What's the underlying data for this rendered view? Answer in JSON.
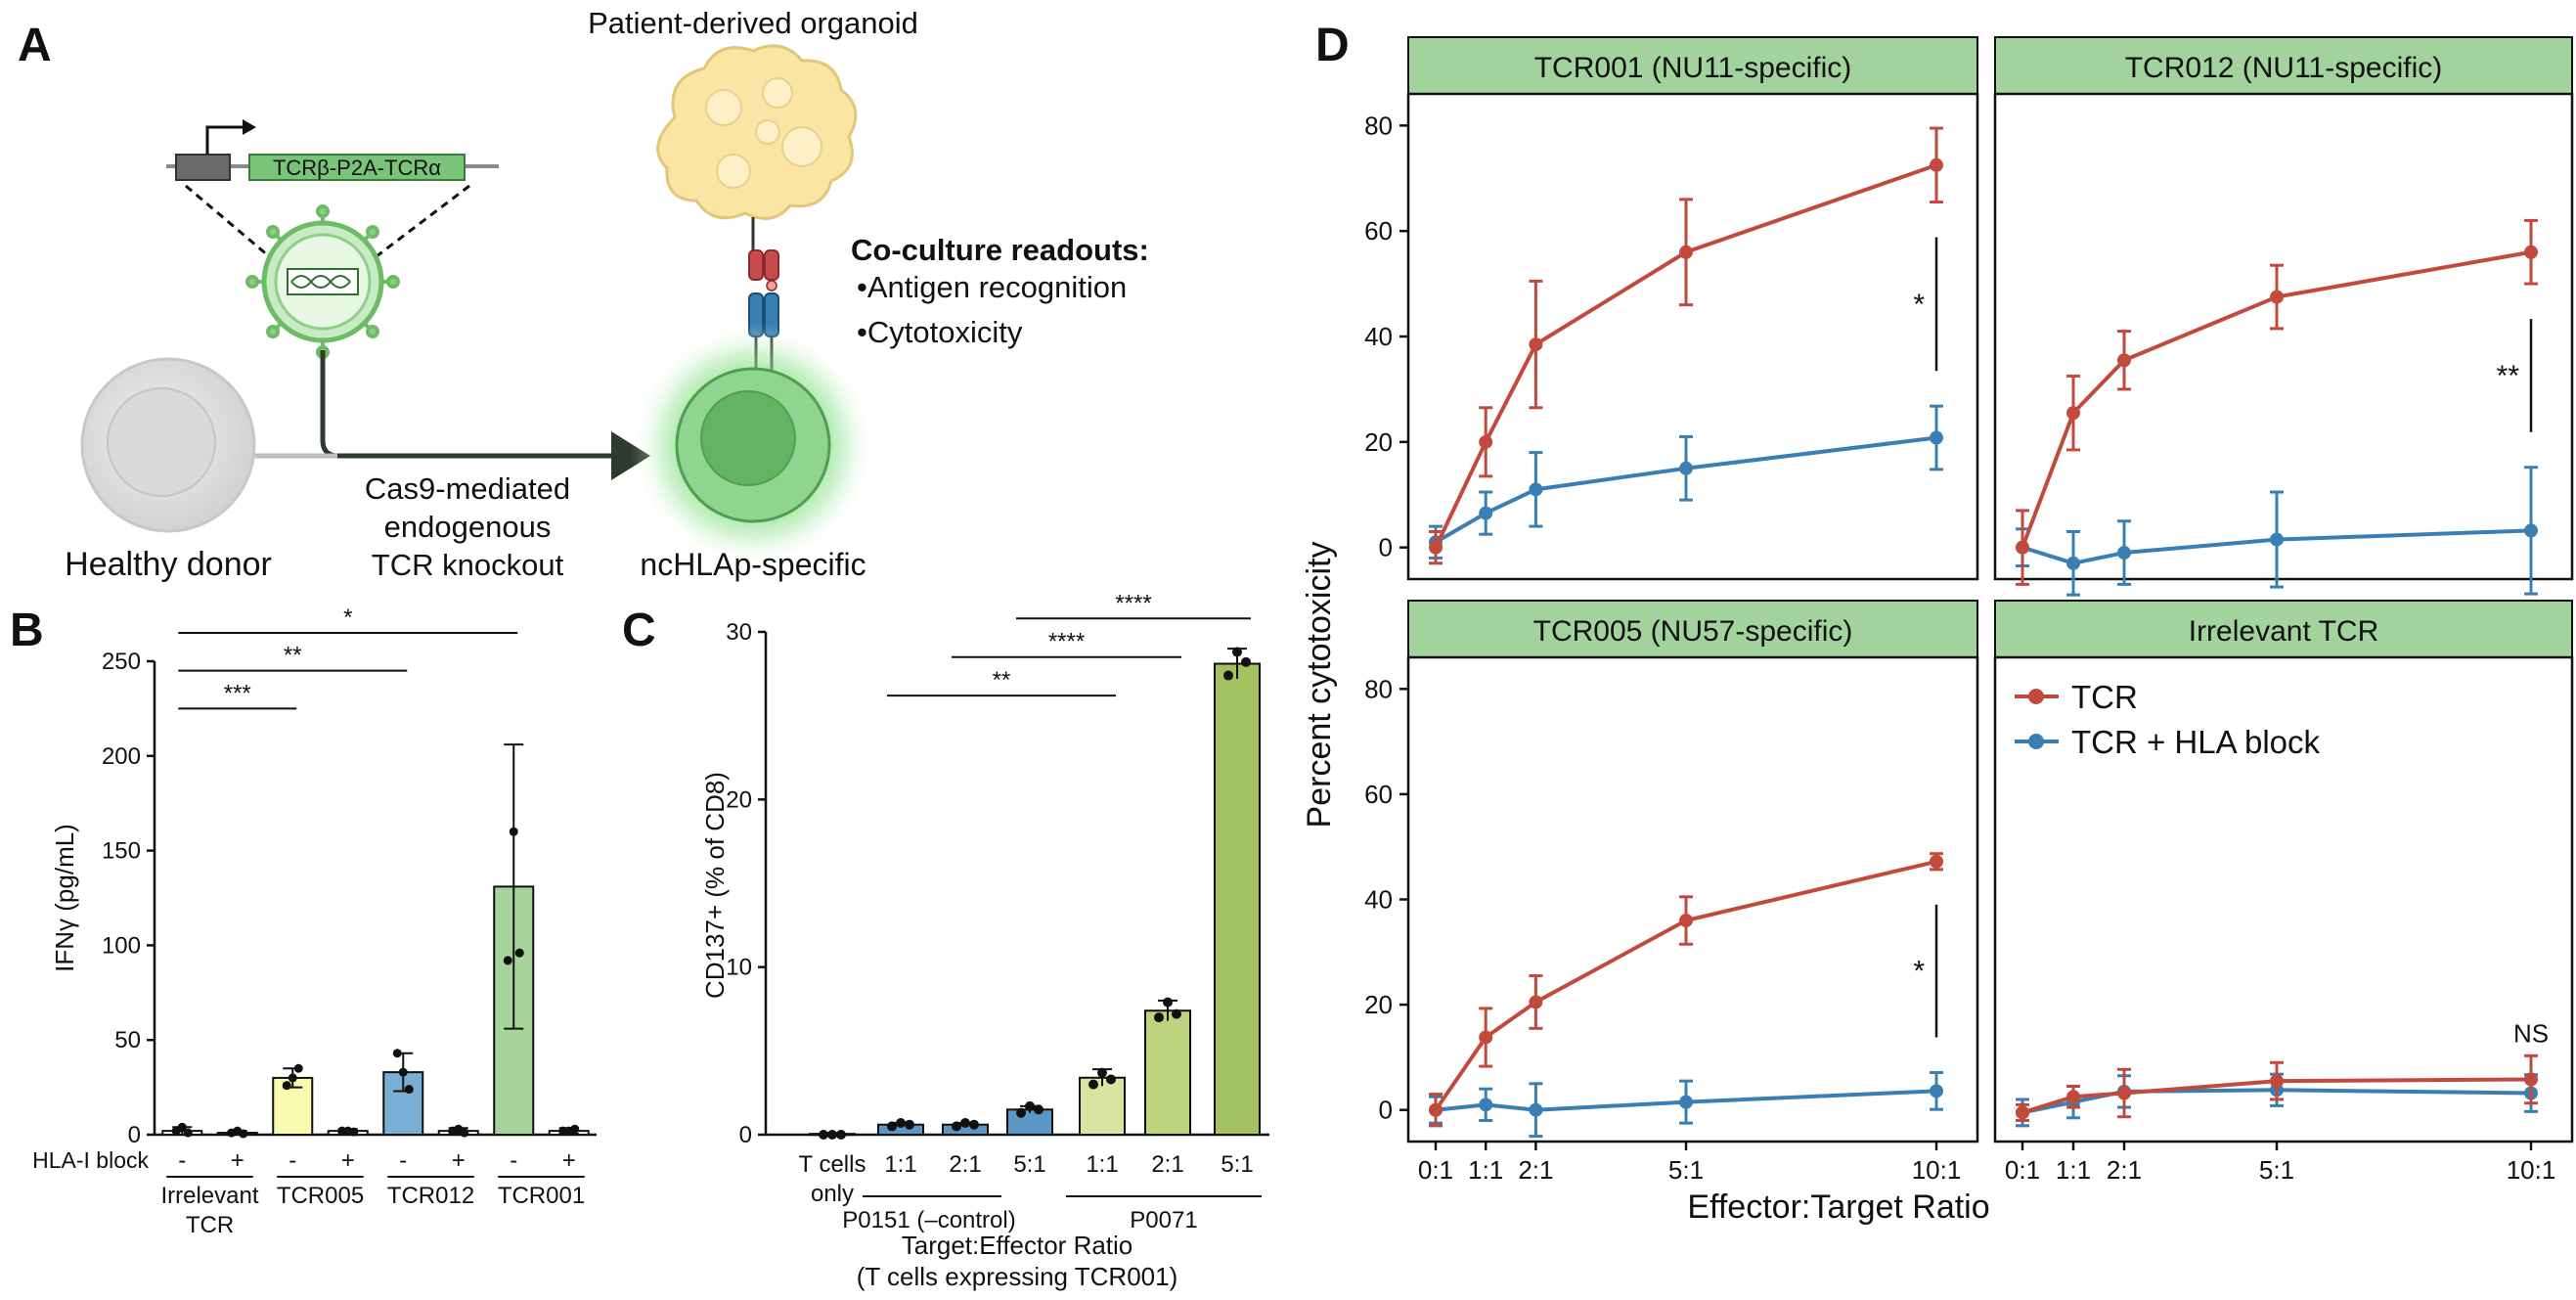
{
  "panels": {
    "a": {
      "letter": "A",
      "organoid_label": "Patient-derived organoid",
      "construct_label": "TCRβ-P2A-TCRα",
      "readouts_title": "Co-culture readouts:",
      "readouts": [
        "•Antigen recognition",
        "•Cytotoxicity"
      ],
      "healthy_donor_label": "Healthy donor",
      "knockout_label": [
        "Cas9-mediated",
        "endogenous",
        "TCR knockout"
      ],
      "ncHLAp_label": "ncHLAp-specific",
      "colors": {
        "construct": "#7ac47a",
        "virus": "#8ed08a",
        "tcell_glow": "#54c454",
        "donor_cell": "#cccccc"
      }
    },
    "b": {
      "letter": "B"
    },
    "c": {
      "letter": "C"
    },
    "d": {
      "letter": "D"
    }
  },
  "chart_data": [
    {
      "id": "B",
      "type": "bar",
      "ylabel": "IFNγ (pg/mL)",
      "ylim": [
        0,
        250
      ],
      "yticks": [
        0,
        50,
        100,
        150,
        200,
        250
      ],
      "row_label": "HLA-I block",
      "hla_block": [
        "-",
        "+",
        "-",
        "+",
        "-",
        "+",
        "-",
        "+"
      ],
      "groups": [
        {
          "name_lines": [
            "Irrelevant",
            "TCR"
          ],
          "color": "#ffffff"
        },
        {
          "name_lines": [
            "TCR005"
          ],
          "color": "#fafab0"
        },
        {
          "name_lines": [
            "TCR012"
          ],
          "color": "#7aaed4"
        },
        {
          "name_lines": [
            "TCR001"
          ],
          "color": "#a6d49a"
        }
      ],
      "values": [
        2,
        1,
        30,
        2,
        33,
        2,
        131,
        2
      ],
      "errors": [
        2,
        1,
        5,
        1,
        10,
        1.5,
        75,
        1.5
      ],
      "points": [
        [
          2,
          4,
          1
        ],
        [
          1,
          2,
          0.5
        ],
        [
          26,
          30,
          35
        ],
        [
          2,
          2,
          1.5
        ],
        [
          43,
          33,
          24
        ],
        [
          2,
          3,
          1
        ],
        [
          92,
          160,
          96
        ],
        [
          2,
          2,
          3
        ]
      ],
      "significance": [
        {
          "from": 0,
          "to": 2,
          "label": "***",
          "y": 225
        },
        {
          "from": 0,
          "to": 4,
          "label": "**",
          "y": 245
        },
        {
          "from": 0,
          "to": 6,
          "label": "*",
          "y": 265
        }
      ]
    },
    {
      "id": "C",
      "type": "bar",
      "ylabel": "CD137+ (% of CD8)",
      "xlabel": [
        "Target:Effector Ratio",
        "(T cells expressing TCR001)"
      ],
      "ylim": [
        0,
        30
      ],
      "yticks": [
        0,
        10,
        20,
        30
      ],
      "categories": [
        "T cells only",
        "1:1",
        "2:1",
        "5:1",
        "1:1",
        "2:1",
        "5:1"
      ],
      "groups": [
        "P0151 (–control)",
        "P0071"
      ],
      "values": [
        0.05,
        0.6,
        0.6,
        1.5,
        3.4,
        7.4,
        28.1
      ],
      "errors": [
        0.05,
        0.1,
        0.1,
        0.2,
        0.5,
        0.6,
        0.9
      ],
      "points": [
        [
          0,
          0,
          0
        ],
        [
          0.5,
          0.7,
          0.6
        ],
        [
          0.5,
          0.7,
          0.6
        ],
        [
          1.3,
          1.7,
          1.5
        ],
        [
          3.0,
          3.7,
          3.3
        ],
        [
          7.0,
          7.9,
          7.2
        ],
        [
          27.4,
          28.8,
          28.2
        ]
      ],
      "colors": [
        "#ffffff",
        "#5b96c5",
        "#5b96c5",
        "#5b96c5",
        "#d8e4a0",
        "#bdd37e",
        "#a2c160"
      ],
      "significance": [
        {
          "from": 1,
          "to": 4,
          "label": "**",
          "y": 26.2
        },
        {
          "from": 2,
          "to": 5,
          "label": "****",
          "y": 28.5
        },
        {
          "from": 3,
          "to": 6,
          "label": "****",
          "y": 30.8
        }
      ]
    },
    {
      "id": "D",
      "type": "line",
      "ylabel": "Percent cytotoxicity",
      "xlabel": "Effector:Target Ratio",
      "x": [
        0,
        1,
        2,
        5,
        10
      ],
      "xticks": [
        "0:1",
        "1:1",
        "2:1",
        "5:1",
        "10:1"
      ],
      "ylim": [
        -6,
        86
      ],
      "yticks": [
        0,
        20,
        40,
        60,
        80
      ],
      "legend": {
        "position": "top-left",
        "entries": [
          "TCR",
          "TCR + HLA block"
        ]
      },
      "series_colors": {
        "TCR": "#c24a3c",
        "TCR + HLA block": "#3a7fb4"
      },
      "facets": [
        {
          "title": "TCR001 (NU11-specific)",
          "tcr": [
            0,
            20,
            38.5,
            56,
            72.5
          ],
          "tcr_err": [
            3,
            6.5,
            12,
            10,
            7
          ],
          "block": [
            1,
            6.5,
            11,
            15,
            20.8
          ],
          "block_err": [
            3,
            4,
            7,
            6,
            6
          ],
          "sig": "*"
        },
        {
          "title": "TCR012 (NU11-specific)",
          "tcr": [
            0,
            25.5,
            35.5,
            47.5,
            56
          ],
          "tcr_err": [
            7,
            7,
            5.5,
            6,
            6
          ],
          "block": [
            0,
            -3,
            -1,
            1.5,
            3.2
          ],
          "block_err": [
            3.5,
            6,
            6,
            9,
            12
          ],
          "sig": "**"
        },
        {
          "title": "TCR005 (NU57-specific)",
          "tcr": [
            0,
            13.8,
            20.5,
            36,
            47.2
          ],
          "tcr_err": [
            3,
            5.5,
            5,
            4.5,
            1.5
          ],
          "block": [
            0,
            1,
            0,
            1.5,
            3.6
          ],
          "block_err": [
            2.5,
            3,
            5,
            4,
            3.5
          ],
          "sig": "*"
        },
        {
          "title": "Irrelevant TCR",
          "tcr": [
            -0.5,
            2.5,
            3.2,
            5.5,
            5.8
          ],
          "tcr_err": [
            1.5,
            2,
            4.5,
            3.5,
            4.5
          ],
          "block": [
            -0.5,
            1.5,
            3.5,
            3.8,
            3.2
          ],
          "block_err": [
            2.5,
            3,
            3,
            3,
            3.5
          ],
          "sig": "NS"
        }
      ]
    }
  ]
}
